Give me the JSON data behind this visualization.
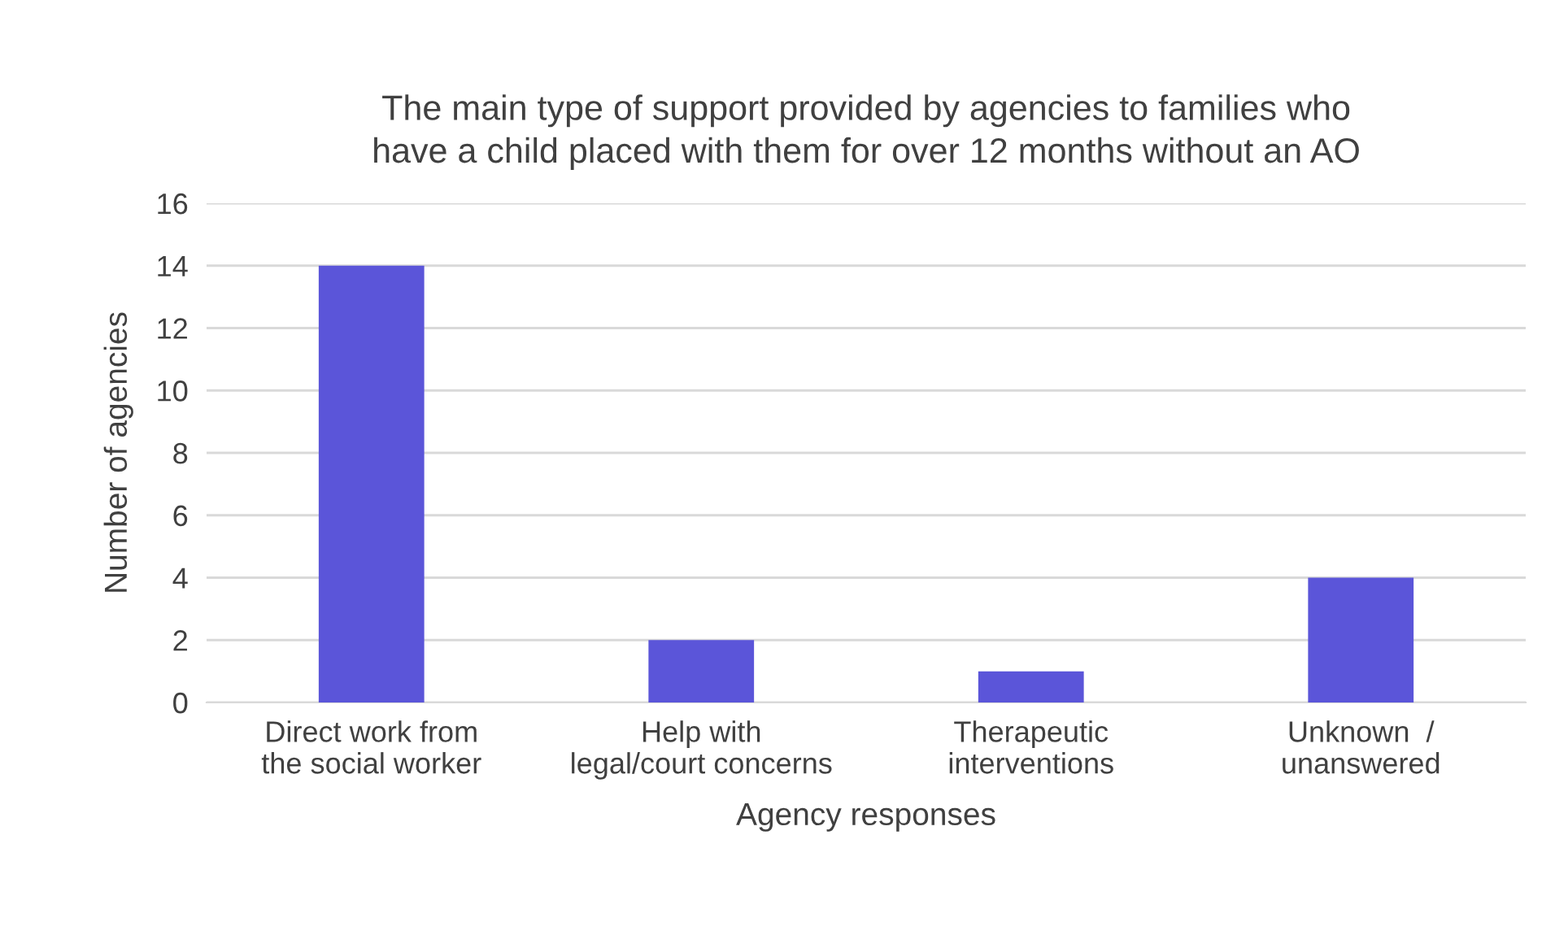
{
  "chart_data": {
    "type": "bar",
    "title": "The main type of support provided by agencies to families who\nhave a child placed with them for over 12 months without an AO",
    "xlabel": "Agency responses",
    "ylabel": "Number of agencies",
    "categories": [
      "Direct work from\nthe social worker",
      "Help with\nlegal/court concerns",
      "Therapeutic\ninterventions",
      "Unknown  /\nunanswered"
    ],
    "values": [
      14,
      2,
      1,
      4
    ],
    "color": "#5b55d9",
    "ylim": [
      0,
      16
    ],
    "yticks": [
      0,
      2,
      4,
      6,
      8,
      10,
      12,
      14,
      16
    ],
    "grid": "y",
    "legend": false
  }
}
